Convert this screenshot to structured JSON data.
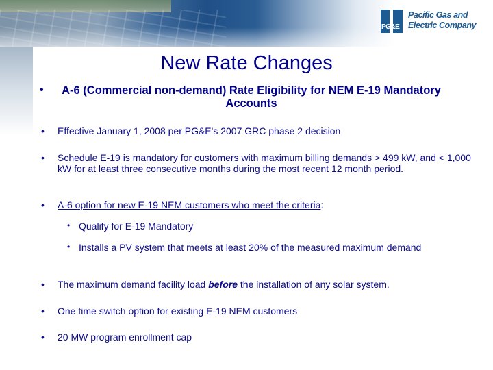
{
  "logo": {
    "mark_text": "PG&E",
    "line1": "Pacific Gas and",
    "line2": "Electric Company"
  },
  "title": "New Rate Changes",
  "subtitle": "A-6 (Commercial non-demand) Rate Eligibility for NEM E-19 Mandatory Accounts",
  "bullet_char": "•",
  "bullets": {
    "b1": "Effective January 1, 2008 per PG&E's 2007 GRC phase 2 decision",
    "b2": "Schedule E-19 is mandatory for customers with maximum billing demands > 499 kW, and < 1,000 kW for at least three consecutive months during the most recent 12 month period.",
    "b3_main": "A-6 option for new E-19 NEM customers who meet the criteria",
    "b3_colon": ":",
    "sub1": "Qualify for E-19 Mandatory",
    "sub2": "Installs a PV system that meets at least 20% of the measured maximum demand",
    "b4_pre": "The maximum demand facility load ",
    "b4_em": "before",
    "b4_post": " the installation of any solar system.",
    "b5": "One time switch option for existing E-19 NEM customers",
    "b6": "20 MW program enrollment cap"
  }
}
